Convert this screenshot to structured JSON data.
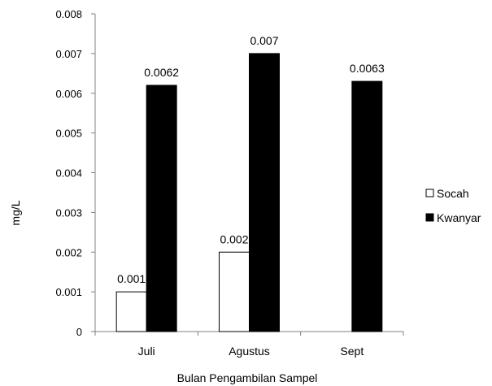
{
  "chart_data": {
    "type": "bar",
    "title": "",
    "xlabel": "Bulan Pengambilan Sampel",
    "ylabel": "mg/L",
    "categories": [
      "Juli",
      "Agustus",
      "Sept"
    ],
    "ylim": [
      0,
      0.008
    ],
    "yticks": [
      0,
      0.001,
      0.002,
      0.003,
      0.004,
      0.005,
      0.006,
      0.007,
      0.008
    ],
    "ytick_labels": [
      "0",
      "0.001",
      "0.002",
      "0.003",
      "0.004",
      "0.005",
      "0.006",
      "0.007",
      "0.008"
    ],
    "grid": false,
    "legend_position": "right",
    "series": [
      {
        "name": "Socah",
        "values": [
          0.001,
          0.002,
          null
        ],
        "labels": [
          "0.001",
          "0.002",
          ""
        ],
        "fill": "#ffffff",
        "stroke": "#000000"
      },
      {
        "name": "Kwanyar",
        "values": [
          0.0062,
          0.007,
          0.0063
        ],
        "labels": [
          "0.0062",
          "0.007",
          "0.0063"
        ],
        "fill": "#000000",
        "stroke": "#000000"
      }
    ]
  }
}
